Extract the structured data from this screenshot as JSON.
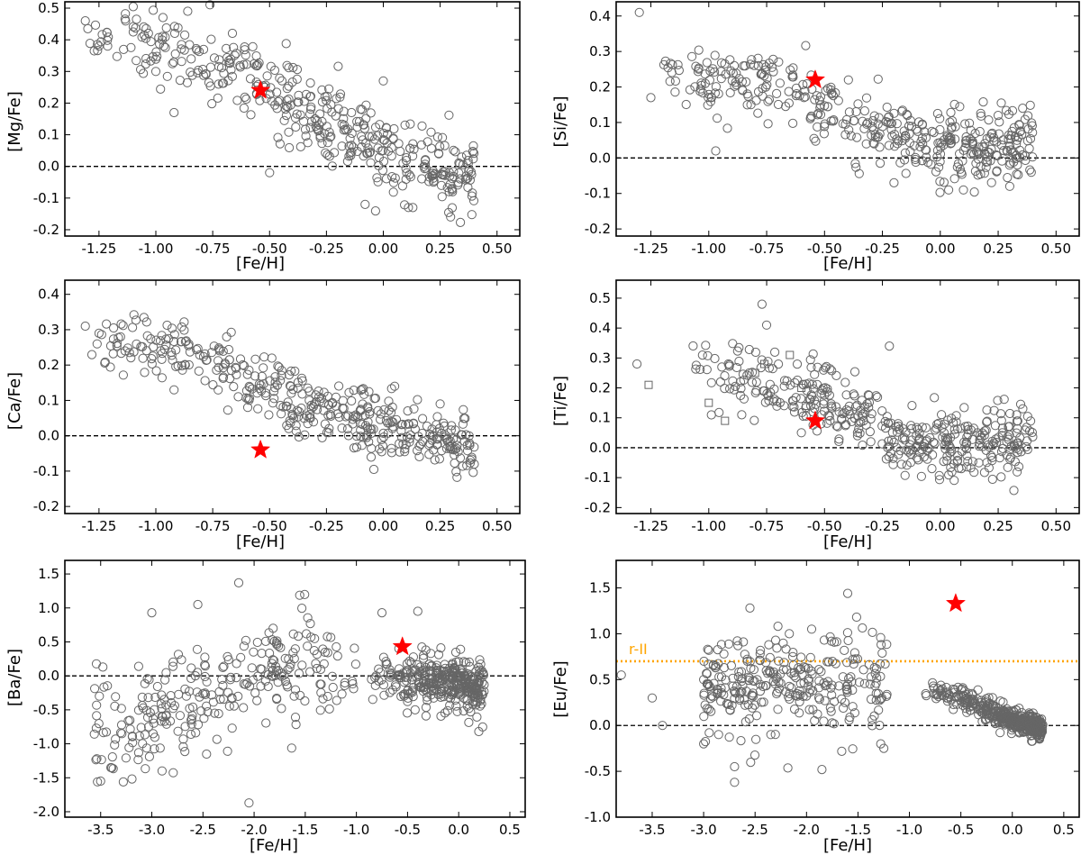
{
  "figure": {
    "panels": [
      {
        "id": "mgfe",
        "xlabel": "[Fe/H]",
        "ylabel": "[Mg/Fe]"
      },
      {
        "id": "sife",
        "xlabel": "[Fe/H]",
        "ylabel": "[Si/Fe]"
      },
      {
        "id": "cafe",
        "xlabel": "[Fe/H]",
        "ylabel": "[Ca/Fe]"
      },
      {
        "id": "tife",
        "xlabel": "[Fe/H]",
        "ylabel": "[Ti/Fe]"
      },
      {
        "id": "bafe",
        "xlabel": "[Fe/H]",
        "ylabel": "[Ba/Fe]"
      },
      {
        "id": "eufe",
        "xlabel": "[Fe/H]",
        "ylabel": "[Eu/Fe]"
      }
    ]
  },
  "colors": {
    "circle": "#666666",
    "star": "#ff0000",
    "rII": "#ffa500",
    "zero": "#000000"
  },
  "chart_data": [
    {
      "type": "scatter",
      "id": "mgfe",
      "xlabel": "[Fe/H]",
      "ylabel": "[Mg/Fe]",
      "xlim": [
        -1.4,
        0.6
      ],
      "ylim": [
        -0.22,
        0.52
      ],
      "xticks": [
        "-1.25",
        "-1.00",
        "-0.75",
        "-0.50",
        "-0.25",
        "0.00",
        "0.25",
        "0.50"
      ],
      "xtickvals": [
        -1.25,
        -1.0,
        -0.75,
        -0.5,
        -0.25,
        0.0,
        0.25,
        0.5
      ],
      "yticks": [
        "-0.2",
        "-0.1",
        "0.0",
        "0.1",
        "0.2",
        "0.3",
        "0.4",
        "0.5"
      ],
      "ytickvals": [
        -0.2,
        -0.1,
        0.0,
        0.1,
        0.2,
        0.3,
        0.4,
        0.5
      ],
      "zero_line": 0.0,
      "sample": {
        "n": 420,
        "trend": [
          [
            -1.3,
            0.43
          ],
          [
            -1.0,
            0.4
          ],
          [
            -0.75,
            0.33
          ],
          [
            -0.5,
            0.25
          ],
          [
            -0.25,
            0.15
          ],
          [
            0.0,
            0.04
          ],
          [
            0.2,
            0.0
          ],
          [
            0.4,
            -0.02
          ]
        ],
        "scatter": 0.065,
        "xmin": -1.3,
        "xmax": 0.4,
        "shape": "falling",
        "seed": 11
      },
      "explicit": [
        [
          -1.31,
          0.46
        ],
        [
          -1.25,
          0.38
        ],
        [
          -0.92,
          0.17
        ],
        [
          -1.0,
          0.3
        ],
        [
          0.0,
          0.27
        ],
        [
          -0.08,
          -0.12
        ],
        [
          0.13,
          -0.13
        ],
        [
          -0.5,
          -0.02
        ]
      ],
      "squares": [],
      "highlight": {
        "x": -0.54,
        "y": 0.24
      }
    },
    {
      "type": "scatter",
      "id": "sife",
      "xlabel": "[Fe/H]",
      "ylabel": "[Si/Fe]",
      "xlim": [
        -1.4,
        0.6
      ],
      "ylim": [
        -0.22,
        0.44
      ],
      "xticks": [
        "-1.25",
        "-1.00",
        "-0.75",
        "-0.50",
        "-0.25",
        "0.00",
        "0.25",
        "0.50"
      ],
      "xtickvals": [
        -1.25,
        -1.0,
        -0.75,
        -0.5,
        -0.25,
        0.0,
        0.25,
        0.5
      ],
      "yticks": [
        "-0.2",
        "-0.1",
        "0.0",
        "0.1",
        "0.2",
        "0.3",
        "0.4"
      ],
      "ytickvals": [
        -0.2,
        -0.1,
        0.0,
        0.1,
        0.2,
        0.3,
        0.4
      ],
      "zero_line": 0.0,
      "sample": {
        "n": 420,
        "trend": [
          [
            -1.2,
            0.24
          ],
          [
            -0.75,
            0.21
          ],
          [
            -0.5,
            0.14
          ],
          [
            -0.25,
            0.08
          ],
          [
            0.0,
            0.03
          ],
          [
            0.4,
            0.03
          ]
        ],
        "scatter": 0.05,
        "xmin": -1.2,
        "xmax": 0.4,
        "shape": "falling",
        "seed": 23
      },
      "explicit": [
        [
          -1.3,
          0.41
        ],
        [
          -1.25,
          0.17
        ],
        [
          -0.97,
          0.02
        ],
        [
          -0.89,
          0.26
        ],
        [
          0.1,
          -0.09
        ],
        [
          0.3,
          -0.08
        ],
        [
          0.25,
          0.12
        ],
        [
          -0.2,
          -0.07
        ]
      ],
      "squares": [],
      "highlight": {
        "x": -0.54,
        "y": 0.22
      }
    },
    {
      "type": "scatter",
      "id": "cafe",
      "xlabel": "[Fe/H]",
      "ylabel": "[Ca/Fe]",
      "xlim": [
        -1.4,
        0.6
      ],
      "ylim": [
        -0.22,
        0.44
      ],
      "xticks": [
        "-1.25",
        "-1.00",
        "-0.75",
        "-0.50",
        "-0.25",
        "0.00",
        "0.25",
        "0.50"
      ],
      "xtickvals": [
        -1.25,
        -1.0,
        -0.75,
        -0.5,
        -0.25,
        0.0,
        0.25,
        0.5
      ],
      "yticks": [
        "-0.2",
        "-0.1",
        "0.0",
        "0.1",
        "0.2",
        "0.3",
        "0.4"
      ],
      "ytickvals": [
        -0.2,
        -0.1,
        0.0,
        0.1,
        0.2,
        0.3,
        0.4
      ],
      "zero_line": 0.0,
      "sample": {
        "n": 420,
        "trend": [
          [
            -1.3,
            0.29
          ],
          [
            -1.0,
            0.26
          ],
          [
            -0.75,
            0.22
          ],
          [
            -0.5,
            0.14
          ],
          [
            -0.25,
            0.07
          ],
          [
            0.0,
            0.03
          ],
          [
            0.25,
            -0.01
          ],
          [
            0.4,
            -0.04
          ]
        ],
        "scatter": 0.045,
        "xmin": -1.3,
        "xmax": 0.4,
        "shape": "falling",
        "seed": 37
      },
      "explicit": [
        [
          -1.31,
          0.31
        ],
        [
          -1.25,
          0.29
        ],
        [
          -0.92,
          0.13
        ],
        [
          0.4,
          -0.08
        ],
        [
          0.25,
          0.09
        ],
        [
          0.05,
          0.14
        ]
      ],
      "squares": [],
      "highlight": {
        "x": -0.54,
        "y": -0.04
      }
    },
    {
      "type": "scatter",
      "id": "tife",
      "xlabel": "[Fe/H]",
      "ylabel": "[Ti/Fe]",
      "xlim": [
        -1.4,
        0.6
      ],
      "ylim": [
        -0.22,
        0.56
      ],
      "xticks": [
        "-1.25",
        "-1.00",
        "-0.75",
        "-0.50",
        "-0.25",
        "0.00",
        "0.25",
        "0.50"
      ],
      "xtickvals": [
        -1.25,
        -1.0,
        -0.75,
        -0.5,
        -0.25,
        0.0,
        0.25,
        0.5
      ],
      "yticks": [
        "-0.2",
        "-0.1",
        "0.0",
        "0.1",
        "0.2",
        "0.3",
        "0.4",
        "0.5"
      ],
      "ytickvals": [
        -0.2,
        -0.1,
        0.0,
        0.1,
        0.2,
        0.3,
        0.4,
        0.5
      ],
      "zero_line": 0.0,
      "sample": {
        "n": 420,
        "trend": [
          [
            -1.1,
            0.27
          ],
          [
            -0.75,
            0.24
          ],
          [
            -0.5,
            0.15
          ],
          [
            -0.25,
            0.07
          ],
          [
            -0.1,
            0.01
          ],
          [
            0.1,
            0.0
          ],
          [
            0.4,
            0.04
          ]
        ],
        "scatter": 0.06,
        "xmin": -1.1,
        "xmax": 0.4,
        "shape": "falling",
        "seed": 41
      },
      "explicit": [
        [
          -1.31,
          0.28
        ],
        [
          -0.77,
          0.48
        ],
        [
          -0.75,
          0.41
        ],
        [
          -0.22,
          0.34
        ],
        [
          -0.6,
          0.05
        ],
        [
          -0.3,
          0.02
        ]
      ],
      "squares": [
        [
          -1.26,
          0.21
        ],
        [
          -1.0,
          0.15
        ],
        [
          -0.93,
          0.09
        ],
        [
          -0.8,
          0.25
        ],
        [
          -0.76,
          0.28
        ],
        [
          -0.58,
          0.14
        ],
        [
          -0.6,
          0.2
        ],
        [
          -0.65,
          0.31
        ]
      ],
      "highlight": {
        "x": -0.54,
        "y": 0.09
      }
    },
    {
      "type": "scatter",
      "id": "bafe",
      "xlabel": "[Fe/H]",
      "ylabel": "[Ba/Fe]",
      "xlim": [
        -3.85,
        0.65
      ],
      "ylim": [
        -2.08,
        1.7
      ],
      "xticks": [
        "-3.5",
        "-3.0",
        "-2.5",
        "-2.0",
        "-1.5",
        "-1.0",
        "-0.5",
        "0.0",
        "0.5"
      ],
      "xtickvals": [
        -3.5,
        -3.0,
        -2.5,
        -2.0,
        -1.5,
        -1.0,
        -0.5,
        0.0,
        0.5
      ],
      "yticks": [
        "-2.0",
        "-1.5",
        "-1.0",
        "-0.5",
        "0.0",
        "0.5",
        "1.0",
        "1.5"
      ],
      "ytickvals": [
        -2.0,
        -1.5,
        -1.0,
        -0.5,
        0.0,
        0.5,
        1.0,
        1.5
      ],
      "zero_line": 0.0,
      "sample": {
        "n": 620,
        "trend": [
          [
            -3.6,
            -0.9
          ],
          [
            -3.0,
            -0.6
          ],
          [
            -2.5,
            -0.3
          ],
          [
            -2.0,
            0.0
          ],
          [
            -1.5,
            0.1
          ],
          [
            -1.0,
            0.05
          ],
          [
            -0.5,
            -0.05
          ],
          [
            0.0,
            -0.1
          ],
          [
            0.25,
            -0.25
          ]
        ],
        "scatter": 0.2,
        "xmin": -3.6,
        "xmax": 0.25,
        "shape": "ba",
        "seed": 53
      },
      "explicit": [
        [
          -2.15,
          1.37
        ],
        [
          -2.55,
          1.05
        ],
        [
          -3.0,
          0.93
        ],
        [
          -2.05,
          -1.87
        ],
        [
          -3.5,
          -1.55
        ],
        [
          -3.4,
          -1.35
        ],
        [
          -2.9,
          -1.4
        ],
        [
          -0.75,
          0.93
        ],
        [
          -0.4,
          0.95
        ],
        [
          -1.45,
          0.77
        ]
      ],
      "squares": [],
      "highlight": {
        "x": -0.55,
        "y": 0.43
      }
    },
    {
      "type": "scatter",
      "id": "eufe",
      "xlabel": "[Fe/H]",
      "ylabel": "[Eu/Fe]",
      "xlim": [
        -3.85,
        0.65
      ],
      "ylim": [
        -1.0,
        1.8
      ],
      "xticks": [
        "-3.5",
        "-3.0",
        "-2.5",
        "-2.0",
        "-1.5",
        "-1.0",
        "-0.5",
        "0.0",
        "0.5"
      ],
      "xtickvals": [
        -3.5,
        -3.0,
        -2.5,
        -2.0,
        -1.5,
        -1.0,
        -0.5,
        0.0,
        0.5
      ],
      "yticks": [
        "-1.0",
        "-0.5",
        "0.0",
        "0.5",
        "1.0",
        "1.5"
      ],
      "ytickvals": [
        -1.0,
        -0.5,
        0.0,
        0.5,
        1.0,
        1.5
      ],
      "zero_line": 0.0,
      "reference_line": {
        "y": 0.7,
        "label": "r-II"
      },
      "sample": {
        "n": 700,
        "trend": [
          [
            -3.0,
            0.4
          ],
          [
            -2.5,
            0.45
          ],
          [
            -2.0,
            0.45
          ],
          [
            -1.5,
            0.45
          ],
          [
            -1.0,
            0.45
          ],
          [
            -0.5,
            0.3
          ],
          [
            0.0,
            0.05
          ],
          [
            0.3,
            -0.05
          ]
        ],
        "scatter": 0.06,
        "xmin": -3.0,
        "xmax": 0.3,
        "shape": "eu",
        "seed": 67
      },
      "explicit": [
        [
          -3.8,
          0.55
        ],
        [
          -3.5,
          0.3
        ],
        [
          -3.4,
          0.0
        ],
        [
          -3.0,
          0.5
        ],
        [
          -3.0,
          -0.2
        ],
        [
          -2.95,
          0.82
        ],
        [
          -2.55,
          1.28
        ],
        [
          -2.7,
          -0.45
        ],
        [
          -2.7,
          -0.62
        ],
        [
          -1.6,
          1.44
        ],
        [
          -1.85,
          -0.48
        ],
        [
          -2.3,
          0.93
        ],
        [
          -1.95,
          1.05
        ]
      ],
      "squares": [],
      "highlight": {
        "x": -0.55,
        "y": 1.33
      }
    }
  ]
}
